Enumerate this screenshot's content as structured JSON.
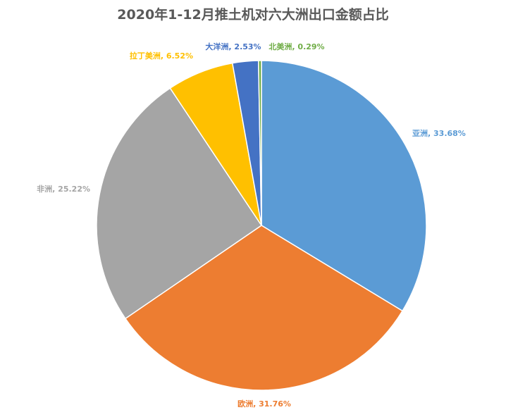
{
  "chart_data": {
    "type": "pie",
    "title": "2020年1-12月推土机对六大洲出口金额占比",
    "legend": "none",
    "slices": [
      {
        "label": "亚洲",
        "value": 33.68,
        "display": "亚洲, 33.68%",
        "color": "#5B9BD5",
        "label_color": "#5B9BD5"
      },
      {
        "label": "欧洲",
        "value": 31.76,
        "display": "欧洲, 31.76%",
        "color": "#ED7D31",
        "label_color": "#ED7D31"
      },
      {
        "label": "非洲",
        "value": 25.22,
        "display": "非洲, 25.22%",
        "color": "#A5A5A5",
        "label_color": "#A5A5A5"
      },
      {
        "label": "拉丁美洲",
        "value": 6.52,
        "display": "拉丁美洲, 6.52%",
        "color": "#FFC000",
        "label_color": "#FFC000"
      },
      {
        "label": "大洋洲",
        "value": 2.53,
        "display": "大洋洲, 2.53%",
        "color": "#4472C4",
        "label_color": "#4472C4"
      },
      {
        "label": "北美洲",
        "value": 0.29,
        "display": "北美洲, 0.29%",
        "color": "#70AD47",
        "label_color": "#70AD47"
      }
    ]
  }
}
